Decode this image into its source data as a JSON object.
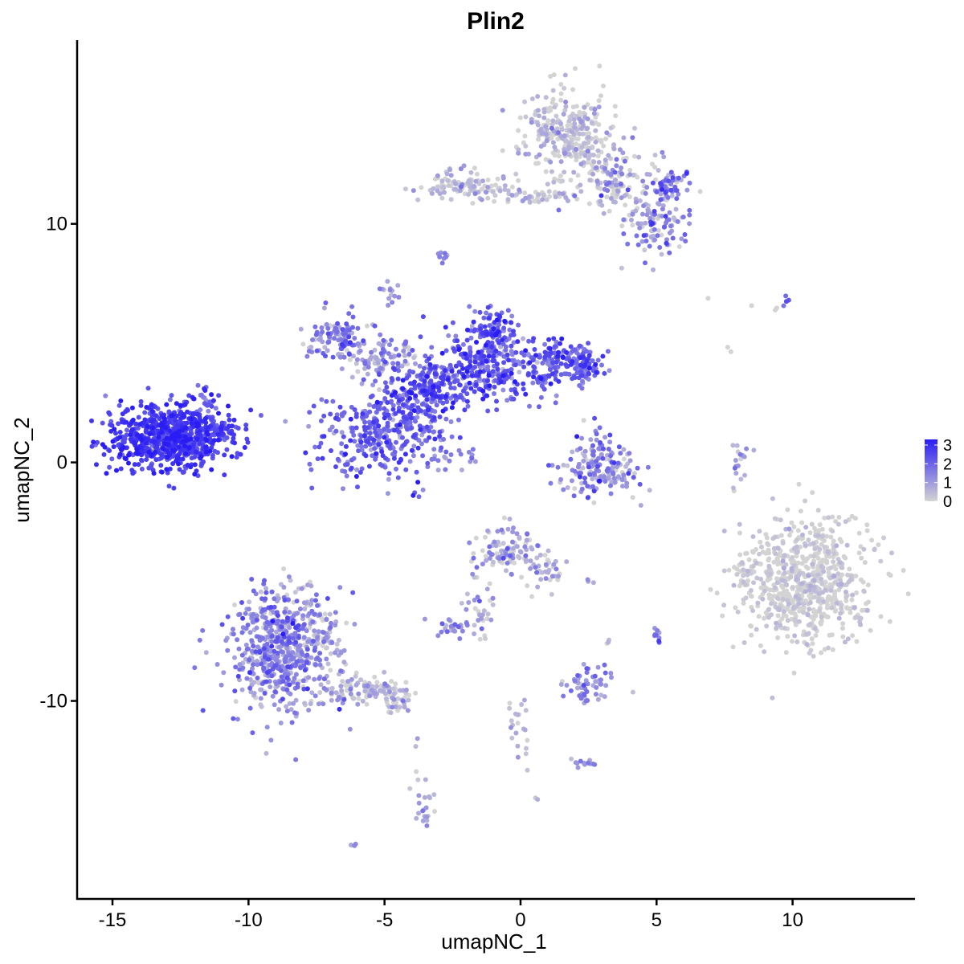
{
  "chart_data": {
    "type": "scatter",
    "title": "Plin2",
    "xlabel": "umapNC_1",
    "ylabel": "umapNC_2",
    "xlim": [
      -16.3,
      14.5
    ],
    "ylim": [
      -18.3,
      17.7
    ],
    "x_ticks": [
      {
        "value": -15,
        "label": "-15"
      },
      {
        "value": -10,
        "label": "-10"
      },
      {
        "value": -5,
        "label": "-5"
      },
      {
        "value": 0,
        "label": "0"
      },
      {
        "value": 5,
        "label": "5"
      },
      {
        "value": 10,
        "label": "10"
      }
    ],
    "y_ticks": [
      {
        "value": -10,
        "label": "-10"
      },
      {
        "value": 0,
        "label": "0"
      },
      {
        "value": 10,
        "label": "10"
      }
    ],
    "grid": false,
    "legend": {
      "placement": "right",
      "min": 0,
      "max": 3.3,
      "low_color": "#d3d3d3",
      "high_color": "#2a1cf5",
      "ticks": [
        {
          "value": 0,
          "label": "0"
        },
        {
          "value": 1,
          "label": "1"
        },
        {
          "value": 2,
          "label": "2"
        },
        {
          "value": 3,
          "label": "3"
        }
      ]
    },
    "clusters": [
      {
        "cx": -12.8,
        "cy": 1.1,
        "sx": 1.1,
        "sy": 0.7,
        "n": 750,
        "expr": 2.7,
        "expr_sd": 0.45
      },
      {
        "cx": -11.6,
        "cy": 2.4,
        "sx": 0.2,
        "sy": 0.4,
        "n": 20,
        "expr": 1.8,
        "expr_sd": 0.3
      },
      {
        "cx": -11.1,
        "cy": 1.3,
        "sx": 0.3,
        "sy": 0.2,
        "n": 25,
        "expr": 2.3,
        "expr_sd": 0.3
      },
      {
        "cx": -5.3,
        "cy": 1.1,
        "sx": 1.1,
        "sy": 0.9,
        "n": 260,
        "expr": 1.9,
        "expr_sd": 0.6
      },
      {
        "cx": -4.0,
        "cy": 2.2,
        "sx": 0.7,
        "sy": 1.0,
        "n": 160,
        "expr": 1.9,
        "expr_sd": 0.6
      },
      {
        "cx": -3.0,
        "cy": 3.2,
        "sx": 0.8,
        "sy": 0.6,
        "n": 160,
        "expr": 2.3,
        "expr_sd": 0.6
      },
      {
        "cx": -1.0,
        "cy": 4.0,
        "sx": 1.0,
        "sy": 0.7,
        "n": 260,
        "expr": 2.0,
        "expr_sd": 0.7
      },
      {
        "cx": -1.0,
        "cy": 5.6,
        "sx": 0.5,
        "sy": 0.5,
        "n": 90,
        "expr": 2.1,
        "expr_sd": 0.6
      },
      {
        "cx": 1.6,
        "cy": 4.2,
        "sx": 0.8,
        "sy": 0.5,
        "n": 130,
        "expr": 2.1,
        "expr_sd": 0.6
      },
      {
        "cx": 2.4,
        "cy": 3.9,
        "sx": 0.3,
        "sy": 0.4,
        "n": 50,
        "expr": 1.9,
        "expr_sd": 0.6
      },
      {
        "cx": -6.7,
        "cy": 5.2,
        "sx": 0.6,
        "sy": 0.5,
        "n": 110,
        "expr": 1.6,
        "expr_sd": 0.7
      },
      {
        "cx": -5.0,
        "cy": 4.3,
        "sx": 0.7,
        "sy": 0.4,
        "n": 90,
        "expr": 0.8,
        "expr_sd": 0.7
      },
      {
        "cx": -4.8,
        "cy": 7.1,
        "sx": 0.2,
        "sy": 0.2,
        "n": 14,
        "expr": 0.9,
        "expr_sd": 0.5
      },
      {
        "cx": -2.5,
        "cy": 0.3,
        "sx": 0.6,
        "sy": 0.3,
        "n": 22,
        "expr": 1.4,
        "expr_sd": 0.4
      },
      {
        "cx": 2.9,
        "cy": -0.4,
        "sx": 0.7,
        "sy": 0.5,
        "n": 150,
        "expr": 1.1,
        "expr_sd": 0.8
      },
      {
        "cx": 2.9,
        "cy": 0.7,
        "sx": 0.3,
        "sy": 0.4,
        "n": 30,
        "expr": 1.4,
        "expr_sd": 0.6
      },
      {
        "cx": 8.0,
        "cy": 0.2,
        "sx": 0.2,
        "sy": 0.6,
        "n": 18,
        "expr": 0.6,
        "expr_sd": 0.5
      },
      {
        "cx": 1.7,
        "cy": 13.8,
        "sx": 0.8,
        "sy": 0.9,
        "n": 280,
        "expr": 0.2,
        "expr_sd": 0.5
      },
      {
        "cx": 3.4,
        "cy": 11.9,
        "sx": 0.8,
        "sy": 0.7,
        "n": 140,
        "expr": 0.6,
        "expr_sd": 0.8
      },
      {
        "cx": 5.0,
        "cy": 10.0,
        "sx": 0.6,
        "sy": 0.8,
        "n": 110,
        "expr": 1.1,
        "expr_sd": 0.8
      },
      {
        "cx": 5.5,
        "cy": 11.6,
        "sx": 0.4,
        "sy": 0.3,
        "n": 50,
        "expr": 1.5,
        "expr_sd": 0.7
      },
      {
        "cx": -2.0,
        "cy": 11.6,
        "sx": 0.8,
        "sy": 0.3,
        "n": 110,
        "expr": 0.3,
        "expr_sd": 0.5
      },
      {
        "cx": 0.5,
        "cy": 11.2,
        "sx": 0.7,
        "sy": 0.2,
        "n": 45,
        "expr": 0.3,
        "expr_sd": 0.5
      },
      {
        "cx": -2.9,
        "cy": 8.6,
        "sx": 0.1,
        "sy": 0.1,
        "n": 8,
        "expr": 1.6,
        "expr_sd": 0.4
      },
      {
        "cx": -8.9,
        "cy": -7.9,
        "sx": 0.9,
        "sy": 1.3,
        "n": 600,
        "expr": 1.2,
        "expr_sd": 0.7
      },
      {
        "cx": -7.3,
        "cy": -7.1,
        "sx": 0.4,
        "sy": 0.8,
        "n": 60,
        "expr": 0.8,
        "expr_sd": 0.6
      },
      {
        "cx": -5.7,
        "cy": -9.6,
        "sx": 0.9,
        "sy": 0.3,
        "n": 120,
        "expr": 0.4,
        "expr_sd": 0.5
      },
      {
        "cx": -4.5,
        "cy": -10.1,
        "sx": 0.3,
        "sy": 0.2,
        "n": 20,
        "expr": 0.4,
        "expr_sd": 0.5
      },
      {
        "cx": 10.5,
        "cy": -5.0,
        "sx": 1.2,
        "sy": 1.3,
        "n": 700,
        "expr": 0.05,
        "expr_sd": 0.25
      },
      {
        "cx": 8.2,
        "cy": -4.6,
        "sx": 0.3,
        "sy": 0.5,
        "n": 35,
        "expr": 0.05,
        "expr_sd": 0.2
      },
      {
        "cx": -0.5,
        "cy": -3.8,
        "sx": 0.6,
        "sy": 0.5,
        "n": 110,
        "expr": 0.6,
        "expr_sd": 0.7
      },
      {
        "cx": 1.0,
        "cy": -4.6,
        "sx": 0.4,
        "sy": 0.6,
        "n": 35,
        "expr": 0.6,
        "expr_sd": 0.6
      },
      {
        "cx": -1.5,
        "cy": -6.0,
        "sx": 0.3,
        "sy": 0.6,
        "n": 28,
        "expr": 0.8,
        "expr_sd": 0.6
      },
      {
        "cx": -2.5,
        "cy": -6.9,
        "sx": 0.3,
        "sy": 0.2,
        "n": 28,
        "expr": 1.3,
        "expr_sd": 0.5
      },
      {
        "cx": 2.4,
        "cy": -9.3,
        "sx": 0.5,
        "sy": 0.4,
        "n": 55,
        "expr": 1.2,
        "expr_sd": 0.6
      },
      {
        "cx": 0.0,
        "cy": -11.3,
        "sx": 0.3,
        "sy": 0.6,
        "n": 22,
        "expr": 0.4,
        "expr_sd": 0.4
      },
      {
        "cx": 2.2,
        "cy": -12.6,
        "sx": 0.3,
        "sy": 0.1,
        "n": 12,
        "expr": 1.2,
        "expr_sd": 0.4
      },
      {
        "cx": -3.6,
        "cy": -14.5,
        "sx": 0.2,
        "sy": 0.6,
        "n": 22,
        "expr": 0.9,
        "expr_sd": 0.5
      },
      {
        "cx": 5.0,
        "cy": -7.3,
        "sx": 0.1,
        "sy": 0.2,
        "n": 9,
        "expr": 1.7,
        "expr_sd": 0.4
      },
      {
        "cx": -6.1,
        "cy": -16.0,
        "sx": 0.05,
        "sy": 0.05,
        "n": 3,
        "expr": 1.2,
        "expr_sd": 0.3
      },
      {
        "cx": 0.6,
        "cy": -14.1,
        "sx": 0.05,
        "sy": 0.05,
        "n": 2,
        "expr": 0.5,
        "expr_sd": 0.3
      },
      {
        "cx": 9.8,
        "cy": 6.8,
        "sx": 0.1,
        "sy": 0.1,
        "n": 4,
        "expr": 1.8,
        "expr_sd": 0.3
      },
      {
        "cx": 9.4,
        "cy": 6.5,
        "sx": 0.05,
        "sy": 0.05,
        "n": 2,
        "expr": 0.0,
        "expr_sd": 0.1
      },
      {
        "cx": 6.9,
        "cy": 6.9,
        "sx": 0.05,
        "sy": 0.05,
        "n": 1,
        "expr": 0.0,
        "expr_sd": 0.1
      },
      {
        "cx": 8.5,
        "cy": 6.6,
        "sx": 0.05,
        "sy": 0.05,
        "n": 1,
        "expr": 0.0,
        "expr_sd": 0.1
      },
      {
        "cx": 7.7,
        "cy": 4.8,
        "sx": 0.05,
        "sy": 0.15,
        "n": 2,
        "expr": 0.0,
        "expr_sd": 0.1
      },
      {
        "cx": -3.9,
        "cy": -11.7,
        "sx": 0.05,
        "sy": 0.1,
        "n": 2,
        "expr": 1.0,
        "expr_sd": 0.3
      },
      {
        "cx": 3.3,
        "cy": -7.5,
        "sx": 0.1,
        "sy": 0.1,
        "n": 3,
        "expr": 0.8,
        "expr_sd": 0.4
      },
      {
        "cx": 2.7,
        "cy": -5.0,
        "sx": 0.1,
        "sy": 0.05,
        "n": 3,
        "expr": 1.0,
        "expr_sd": 0.4
      },
      {
        "cx": -1.3,
        "cy": -7.4,
        "sx": 0.1,
        "sy": 0.1,
        "n": 3,
        "expr": 0.3,
        "expr_sd": 0.3
      }
    ],
    "point_radius": 3,
    "seed": 20240521
  }
}
